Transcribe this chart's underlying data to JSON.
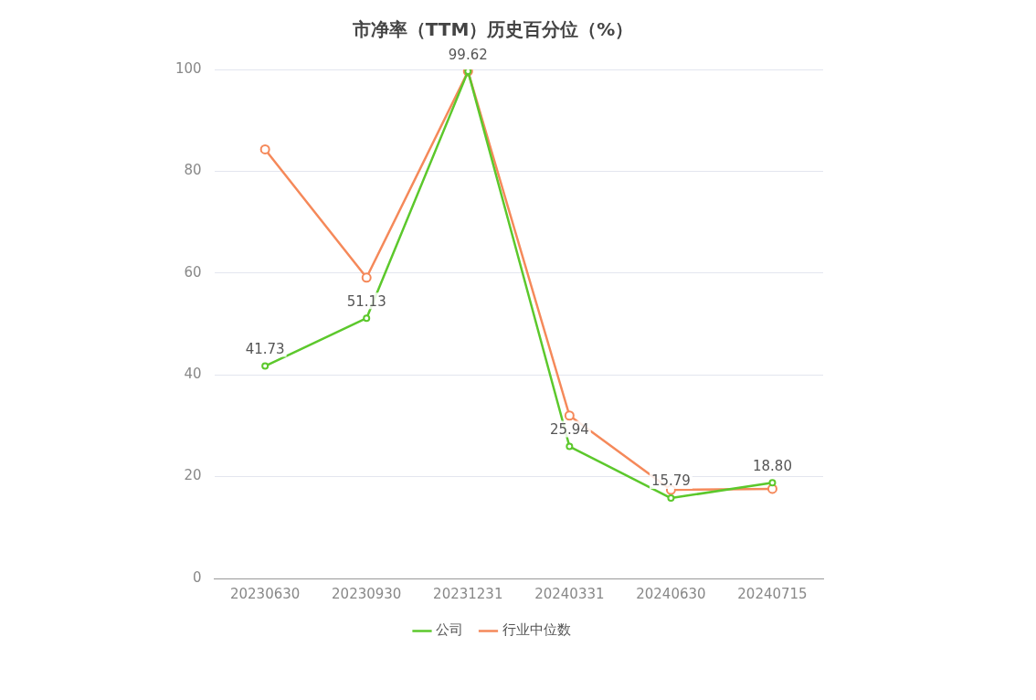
{
  "chart_data": {
    "type": "line",
    "title": "市净率（TTM）历史百分位（%）",
    "categories": [
      "20230630",
      "20230930",
      "20231231",
      "20240331",
      "20240630",
      "20240715"
    ],
    "series": [
      {
        "name": "公司",
        "color": "#5cc82c",
        "values": [
          41.73,
          51.13,
          99.62,
          25.94,
          15.79,
          18.8
        ],
        "value_labels": [
          "41.73",
          "51.13",
          "99.62",
          "25.94",
          "15.79",
          "18.80"
        ]
      },
      {
        "name": "行业中位数",
        "color": "#f5895a",
        "values": [
          84.3,
          59.1,
          99.6,
          32.0,
          17.4,
          17.6
        ]
      }
    ],
    "ylim": [
      0,
      100
    ],
    "yticks": [
      0,
      20,
      40,
      60,
      80,
      100
    ],
    "grid": "y",
    "legend": "bottom",
    "marker": "circle",
    "line_style": "solid"
  }
}
